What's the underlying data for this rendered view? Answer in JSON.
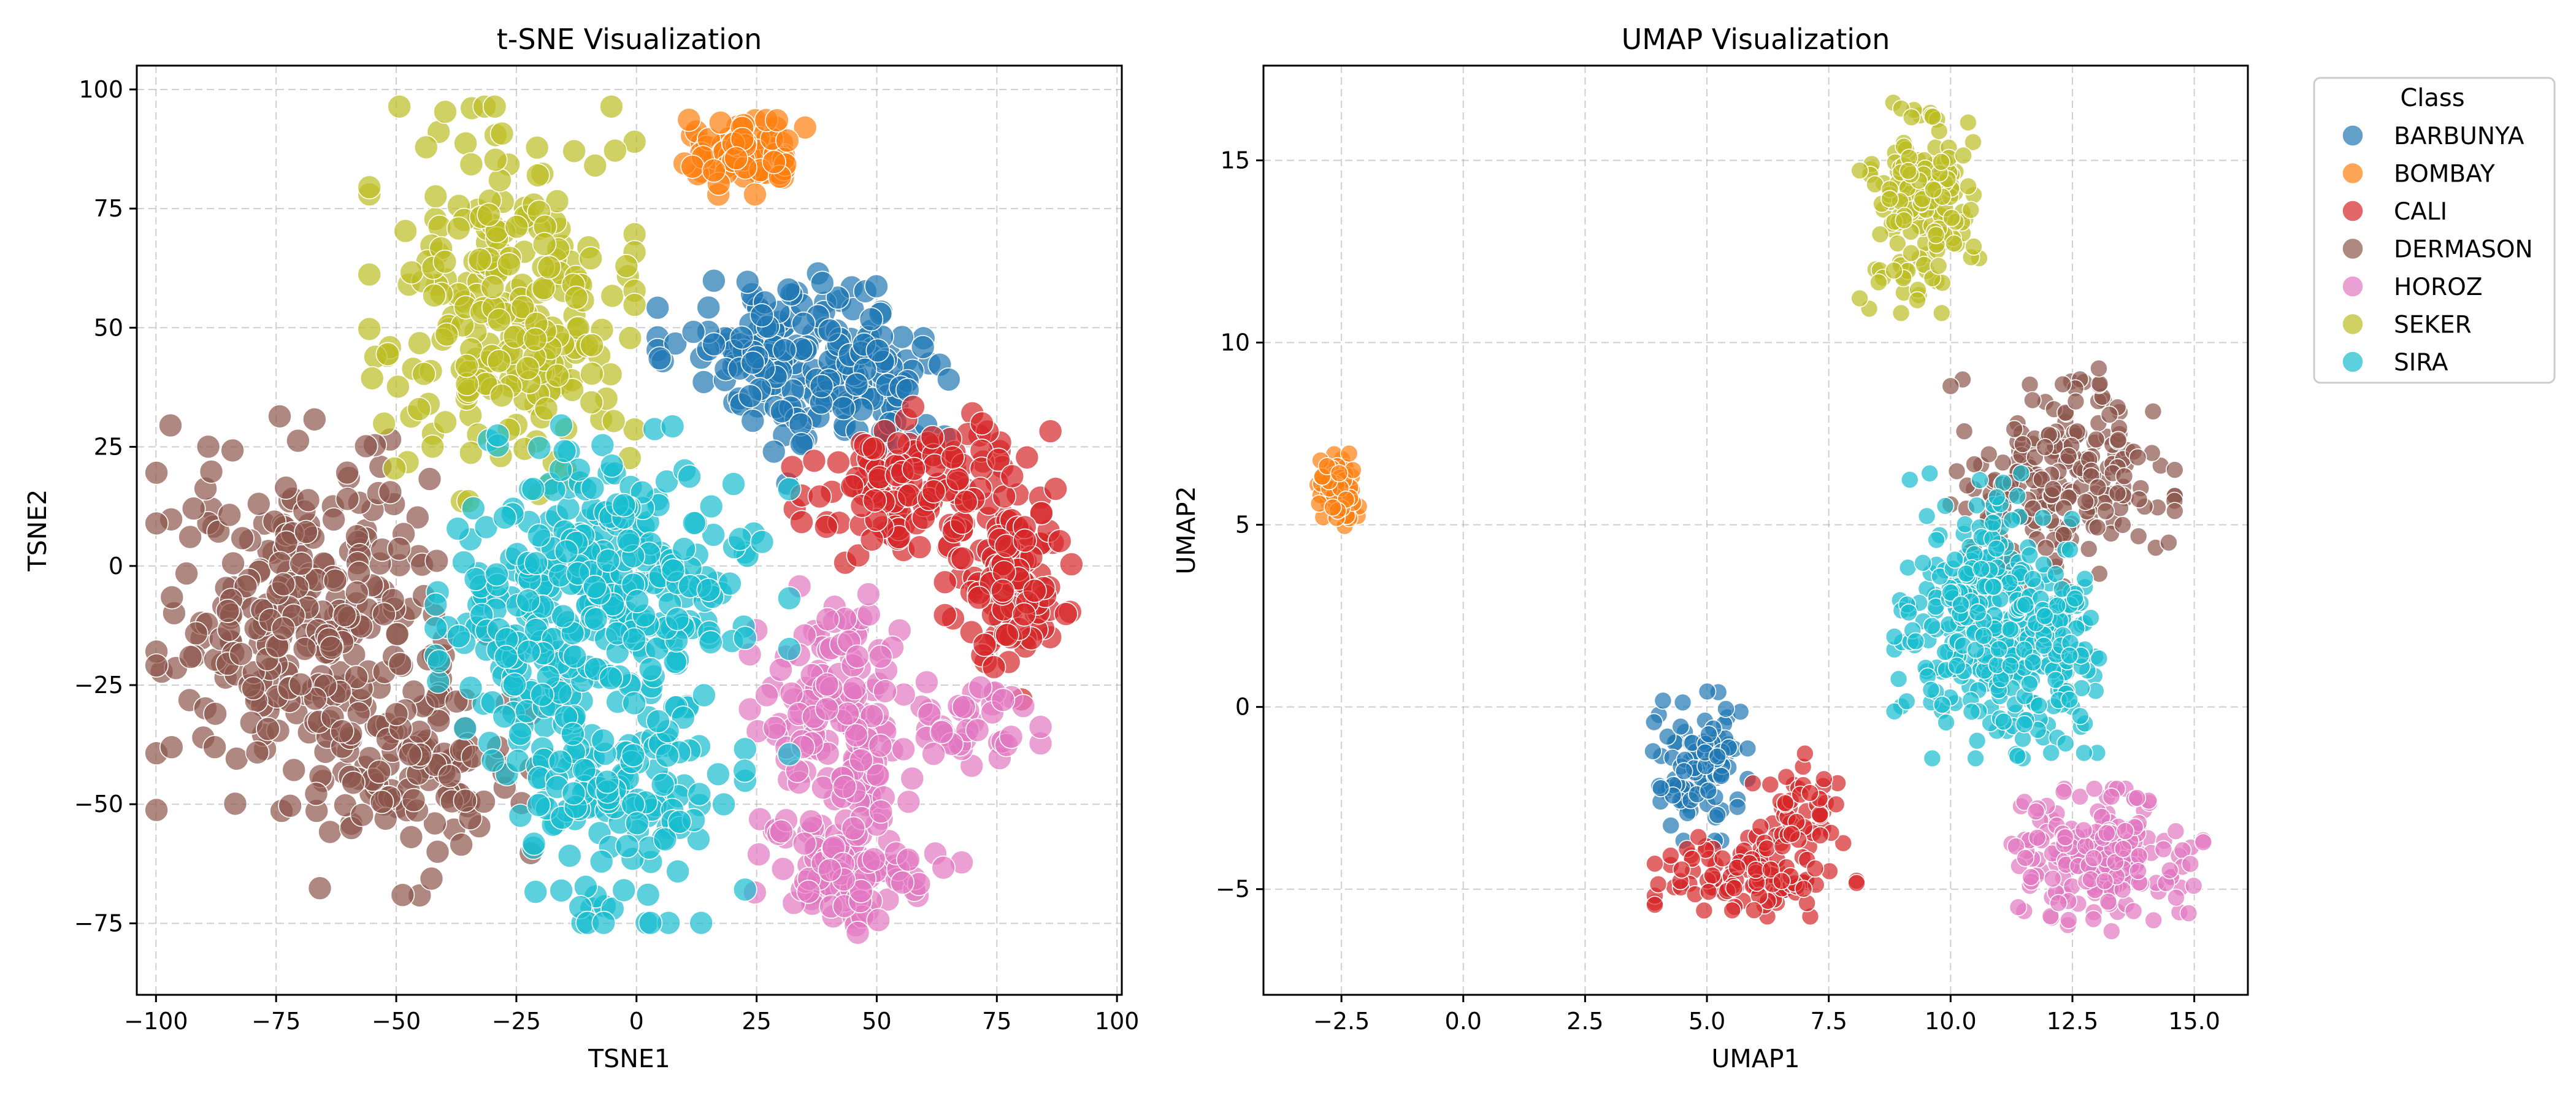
{
  "chart_data": [
    {
      "type": "scatter",
      "title": "t-SNE Visualization",
      "xlabel": "TSNE1",
      "ylabel": "TSNE2",
      "xlim": [
        -104,
        101
      ],
      "ylim": [
        -90,
        105
      ],
      "xticks": [
        -100,
        -75,
        -50,
        -25,
        0,
        25,
        50,
        75,
        100
      ],
      "xtick_labels": [
        "−100",
        "−75",
        "−50",
        "−25",
        "0",
        "25",
        "50",
        "75",
        "100"
      ],
      "yticks": [
        -75,
        -50,
        -25,
        0,
        25,
        50,
        75,
        100
      ],
      "ytick_labels": [
        "−75",
        "−50",
        "−25",
        "0",
        "25",
        "50",
        "75",
        "100"
      ],
      "grid": true,
      "series": [
        {
          "name": "BARBUNYA",
          "color": "#1f77b4",
          "clusters": [
            {
              "cx": 32,
              "cy": 43,
              "sx": 12,
              "sy": 8,
              "n": 160
            },
            {
              "cx": 47,
              "cy": 38,
              "sx": 8,
              "sy": 9,
              "n": 60
            }
          ]
        },
        {
          "name": "BOMBAY",
          "color": "#ff7f0e",
          "clusters": [
            {
              "cx": 22,
              "cy": 86,
              "sx": 6,
              "sy": 3.5,
              "n": 90
            }
          ]
        },
        {
          "name": "CALI",
          "color": "#d62728",
          "clusters": [
            {
              "cx": 60,
              "cy": 15,
              "sx": 12,
              "sy": 8,
              "n": 160
            },
            {
              "cx": 78,
              "cy": -5,
              "sx": 6,
              "sy": 10,
              "n": 90
            }
          ]
        },
        {
          "name": "DERMASON",
          "color": "#8c564b",
          "clusters": [
            {
              "cx": -70,
              "cy": -10,
              "sx": 13,
              "sy": 18,
              "n": 280
            },
            {
              "cx": -45,
              "cy": -42,
              "sx": 10,
              "sy": 12,
              "n": 120
            }
          ]
        },
        {
          "name": "HOROZ",
          "color": "#e377c2",
          "clusters": [
            {
              "cx": 42,
              "cy": -35,
              "sx": 8,
              "sy": 14,
              "n": 160
            },
            {
              "cx": 45,
              "cy": -65,
              "sx": 10,
              "sy": 6,
              "n": 90
            },
            {
              "cx": 68,
              "cy": -33,
              "sx": 7,
              "sy": 4,
              "n": 40
            }
          ]
        },
        {
          "name": "SEKER",
          "color": "#bcbd22",
          "clusters": [
            {
              "cx": -28,
              "cy": 55,
              "sx": 12,
              "sy": 18,
              "n": 260
            }
          ]
        },
        {
          "name": "SIRA",
          "color": "#17becf",
          "clusters": [
            {
              "cx": -5,
              "cy": -5,
              "sx": 16,
              "sy": 15,
              "n": 280
            },
            {
              "cx": -5,
              "cy": -45,
              "sx": 12,
              "sy": 13,
              "n": 160
            },
            {
              "cx": -28,
              "cy": -15,
              "sx": 7,
              "sy": 10,
              "n": 60
            }
          ]
        }
      ]
    },
    {
      "type": "scatter",
      "title": "UMAP Visualization",
      "xlabel": "UMAP1",
      "ylabel": "UMAP2",
      "xlim": [
        -4.1,
        16.1
      ],
      "ylim": [
        -7.9,
        17.6
      ],
      "xticks": [
        -2.5,
        0,
        2.5,
        5,
        7.5,
        10,
        12.5,
        15
      ],
      "xtick_labels": [
        "−2.5",
        "0.0",
        "2.5",
        "5.0",
        "7.5",
        "10.0",
        "12.5",
        "15.0"
      ],
      "yticks": [
        -5,
        0,
        5,
        10,
        15
      ],
      "ytick_labels": [
        "−5",
        "0",
        "5",
        "10",
        "15"
      ],
      "grid": true,
      "series": [
        {
          "name": "BARBUNYA",
          "color": "#1f77b4",
          "clusters": [
            {
              "cx": 4.8,
              "cy": -1.6,
              "sx": 0.45,
              "sy": 0.9,
              "n": 110
            }
          ]
        },
        {
          "name": "BOMBAY",
          "color": "#ff7f0e",
          "clusters": [
            {
              "cx": -2.6,
              "cy": 6.0,
              "sx": 0.2,
              "sy": 0.45,
              "n": 70
            }
          ]
        },
        {
          "name": "CALI",
          "color": "#d62728",
          "clusters": [
            {
              "cx": 6.0,
              "cy": -4.6,
              "sx": 0.9,
              "sy": 0.5,
              "n": 120
            },
            {
              "cx": 6.8,
              "cy": -2.8,
              "sx": 0.45,
              "sy": 0.7,
              "n": 50
            }
          ]
        },
        {
          "name": "DERMASON",
          "color": "#8c564b",
          "clusters": [
            {
              "cx": 12.3,
              "cy": 6.3,
              "sx": 1.0,
              "sy": 1.3,
              "n": 230
            }
          ]
        },
        {
          "name": "HOROZ",
          "color": "#e377c2",
          "clusters": [
            {
              "cx": 13.0,
              "cy": -4.2,
              "sx": 0.95,
              "sy": 0.85,
              "n": 200
            }
          ]
        },
        {
          "name": "SEKER",
          "color": "#bcbd22",
          "clusters": [
            {
              "cx": 9.4,
              "cy": 13.8,
              "sx": 0.55,
              "sy": 1.3,
              "n": 170
            }
          ]
        },
        {
          "name": "SIRA",
          "color": "#17becf",
          "clusters": [
            {
              "cx": 10.8,
              "cy": 2.5,
              "sx": 0.85,
              "sy": 1.7,
              "n": 320
            },
            {
              "cx": 12.0,
              "cy": 1.5,
              "sx": 0.6,
              "sy": 1.2,
              "n": 90
            }
          ]
        }
      ]
    }
  ],
  "legend": {
    "title": "Class",
    "placement": "outside-right",
    "items": [
      {
        "label": "BARBUNYA",
        "color": "#1f77b4"
      },
      {
        "label": "BOMBAY",
        "color": "#ff7f0e"
      },
      {
        "label": "CALI",
        "color": "#d62728"
      },
      {
        "label": "DERMASON",
        "color": "#8c564b"
      },
      {
        "label": "HOROZ",
        "color": "#e377c2"
      },
      {
        "label": "SEKER",
        "color": "#bcbd22"
      },
      {
        "label": "SIRA",
        "color": "#17becf"
      }
    ]
  }
}
